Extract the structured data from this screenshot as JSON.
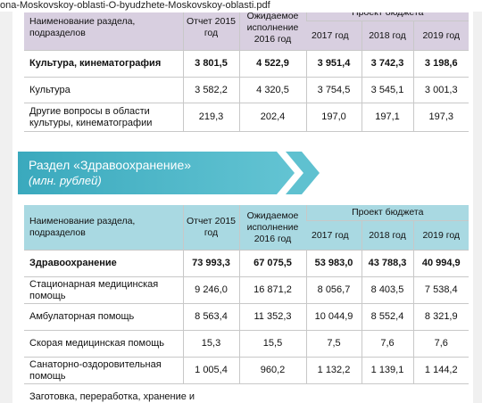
{
  "tab_title": "ona-Moskovskoy-oblasti-O-byudzhete-Moskovskoy-oblasti.pdf",
  "table1": {
    "headers": {
      "name": "Наименование раздела, подразделов",
      "report": "Отчет 2015 год",
      "expected": "Ожидаемое исполнение 2016 год",
      "project": "Проект бюджета",
      "years": [
        "2017 год",
        "2018 год",
        "2019 год"
      ]
    },
    "rows": [
      [
        "Культура, кинематография",
        "3 801,5",
        "4 522,9",
        "3 951,4",
        "3 742,3",
        "3 198,6"
      ],
      [
        "Культура",
        "3 582,2",
        "4 320,5",
        "3 754,5",
        "3 545,1",
        "3 001,3"
      ],
      [
        "Другие вопросы в области культуры, кинематографии",
        "219,3",
        "202,4",
        "197,0",
        "197,1",
        "197,3"
      ]
    ]
  },
  "banner": {
    "title": "Раздел «Здравоохранение»",
    "unit": "(млн. рублей)"
  },
  "table2": {
    "headers": {
      "name": "Наименование раздела, подразделов",
      "report": "Отчет 2015 год",
      "expected": "Ожидаемое исполнение 2016 год",
      "project": "Проект бюджета",
      "years": [
        "2017 год",
        "2018 год",
        "2019 год"
      ]
    },
    "rows": [
      [
        "Здравоохранение",
        "73 993,3",
        "67 075,5",
        "53 983,0",
        "43 788,3",
        "40 994,9"
      ],
      [
        "Стационарная медицинская помощь",
        "9 246,0",
        "16 871,2",
        "8 056,7",
        "8 403,5",
        "7 538,4"
      ],
      [
        "Амбулаторная помощь",
        "8 563,4",
        "11 352,3",
        "10 044,9",
        "8 552,4",
        "8 321,9"
      ],
      [
        "Скорая медицинская помощь",
        "15,3",
        "15,5",
        "7,5",
        "7,6",
        "7,6"
      ],
      [
        "Санаторно-оздоровительная помощь",
        "1 005,4",
        "960,2",
        "1 132,2",
        "1 139,1",
        "1 144,2"
      ],
      [
        "Заготовка, переработка, хранение и"
      ]
    ]
  }
}
